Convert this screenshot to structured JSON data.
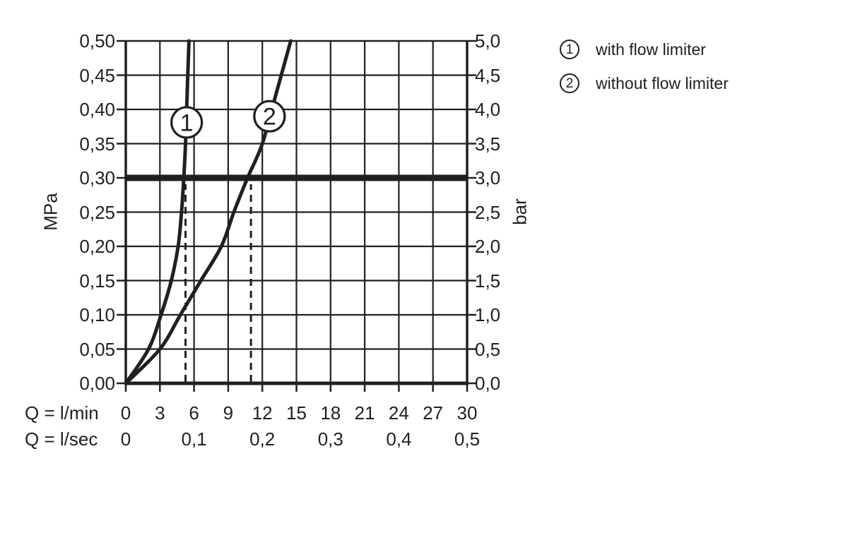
{
  "page": {
    "background": "#ffffff",
    "ink_color": "#231f20"
  },
  "legend": {
    "items": [
      {
        "symbol": "1",
        "label": "with flow limiter"
      },
      {
        "symbol": "2",
        "label": "without flow limiter"
      }
    ]
  },
  "chart_data": {
    "type": "line",
    "grid": true,
    "x_axis": {
      "row1_label": "Q = l/min",
      "row1_ticks": [
        "0",
        "3",
        "6",
        "9",
        "12",
        "15",
        "18",
        "21",
        "24",
        "27",
        "30"
      ],
      "row2_label": "Q = l/sec",
      "row2_ticks": [
        "0",
        "0,1",
        "0,2",
        "0,3",
        "0,4",
        "0,5"
      ],
      "range_lmin": [
        0,
        30
      ]
    },
    "y_axis_left": {
      "label": "MPa",
      "ticks": [
        "0,00",
        "0,05",
        "0,10",
        "0,15",
        "0,20",
        "0,25",
        "0,30",
        "0,35",
        "0,40",
        "0,45",
        "0,50"
      ],
      "range": [
        0,
        0.5
      ]
    },
    "y_axis_right": {
      "label": "bar",
      "ticks": [
        "0,0",
        "0,5",
        "1,0",
        "1,5",
        "2,0",
        "2,5",
        "3,0",
        "3,5",
        "4,0",
        "4,5",
        "5,0"
      ],
      "range": [
        0,
        5
      ]
    },
    "series": [
      {
        "marker_label": "1",
        "name": "with flow limiter",
        "points_lmin_mpa": [
          [
            0,
            0
          ],
          [
            2,
            0.05
          ],
          [
            3.1,
            0.1
          ],
          [
            4.0,
            0.15
          ],
          [
            4.6,
            0.2
          ],
          [
            4.9,
            0.25
          ],
          [
            5.1,
            0.3
          ],
          [
            5.25,
            0.35
          ],
          [
            5.35,
            0.4
          ],
          [
            5.45,
            0.45
          ],
          [
            5.55,
            0.5
          ]
        ],
        "marker_at": [
          5.35,
          0.381
        ]
      },
      {
        "marker_label": "2",
        "name": "without flow limiter",
        "points_lmin_mpa": [
          [
            0,
            0
          ],
          [
            3,
            0.05
          ],
          [
            4.8,
            0.1
          ],
          [
            6.6,
            0.15
          ],
          [
            8.4,
            0.2
          ],
          [
            9.5,
            0.25
          ],
          [
            10.7,
            0.3
          ],
          [
            12.0,
            0.35
          ],
          [
            13.25,
            0.425
          ],
          [
            14.5,
            0.5
          ]
        ],
        "marker_at": [
          12.63,
          0.39
        ]
      }
    ],
    "reference_line_mpa": 0.3,
    "dashed_guides_lmin": [
      5.25,
      11.0
    ]
  }
}
